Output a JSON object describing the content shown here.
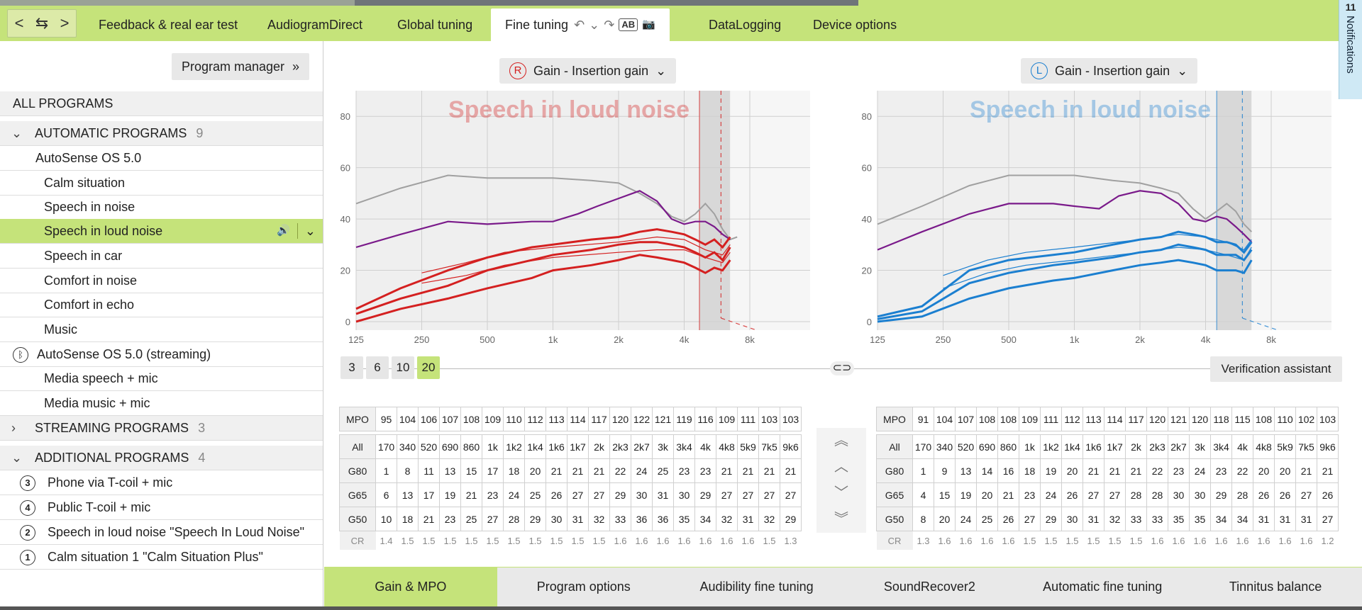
{
  "nav": {
    "back": "<",
    "swap": "⇆",
    "forward": ">"
  },
  "tabs": [
    "Feedback & real ear test",
    "AudiogramDirect",
    "Global tuning",
    "Fine tuning",
    "DataLogging",
    "Device options"
  ],
  "tab_icons": {
    "undo": "↶",
    "dropdown": "⌄",
    "redo": "↷",
    "ab": "AB",
    "camera": "📷"
  },
  "notifications": {
    "count": "11",
    "label": "Notifications"
  },
  "program_manager": "Program manager",
  "program_manager_icon": "»",
  "programs": {
    "all": "ALL PROGRAMS",
    "automatic": {
      "label": "AUTOMATIC PROGRAMS",
      "count": "9"
    },
    "autosense": "AutoSense OS 5.0",
    "auto_items": [
      "Calm situation",
      "Speech in noise",
      "Speech in loud noise",
      "Speech in car",
      "Comfort in noise",
      "Comfort in echo",
      "Music"
    ],
    "streaming_parent": "AutoSense OS 5.0 (streaming)",
    "streaming_items": [
      "Media speech + mic",
      "Media music + mic"
    ],
    "streaming": {
      "label": "STREAMING PROGRAMS",
      "count": "3"
    },
    "additional": {
      "label": "ADDITIONAL PROGRAMS",
      "count": "4"
    },
    "additional_items": [
      {
        "num": "3",
        "label": "Phone via T-coil + mic"
      },
      {
        "num": "4",
        "label": "Public T-coil + mic"
      },
      {
        "num": "2",
        "label": "Speech in loud noise \"Speech In Loud Noise\""
      },
      {
        "num": "1",
        "label": "Calm situation 1 \"Calm Situation Plus\""
      }
    ]
  },
  "gain_selector": {
    "right": "Gain - Insertion gain",
    "left": "Gain - Insertion gain",
    "r_mark": "R",
    "l_mark": "L"
  },
  "chart_title": "Speech in loud noise",
  "colors": {
    "accent": "#c5e37a",
    "right": "#d42020",
    "left": "#1b7fd0",
    "mpo": "#7a1a8a",
    "ref": "#a0a0a0"
  },
  "chart_data": [
    {
      "type": "line",
      "side": "right",
      "title": "Speech in loud noise",
      "x_ticks": [
        "125",
        "250",
        "500",
        "1k",
        "2k",
        "4k",
        "8k"
      ],
      "y_ticks": [
        "0",
        "20",
        "40",
        "60",
        "80"
      ],
      "ylim": [
        0,
        90
      ],
      "series": []
    },
    {
      "type": "line",
      "side": "left",
      "title": "Speech in loud noise",
      "x_ticks": [
        "125",
        "250",
        "500",
        "1k",
        "2k",
        "4k",
        "8k"
      ],
      "y_ticks": [
        "0",
        "20",
        "40",
        "60",
        "80"
      ],
      "ylim": [
        0,
        90
      ],
      "series": []
    }
  ],
  "curves": {
    "right": {
      "ref": [
        [
          125,
          46
        ],
        [
          200,
          52
        ],
        [
          330,
          57
        ],
        [
          500,
          56
        ],
        [
          800,
          56
        ],
        [
          1000,
          56
        ],
        [
          1500,
          55
        ],
        [
          2000,
          54
        ],
        [
          2500,
          50
        ],
        [
          3000,
          46
        ],
        [
          3500,
          41
        ],
        [
          4000,
          39
        ],
        [
          4500,
          42
        ],
        [
          5000,
          46
        ],
        [
          5500,
          42
        ],
        [
          6000,
          36
        ],
        [
          6500,
          32
        ],
        [
          7000,
          33
        ]
      ],
      "mpo": [
        [
          125,
          29
        ],
        [
          200,
          34
        ],
        [
          330,
          39
        ],
        [
          500,
          38
        ],
        [
          800,
          39
        ],
        [
          1000,
          39
        ],
        [
          1300,
          42
        ],
        [
          1600,
          45
        ],
        [
          2000,
          48
        ],
        [
          2500,
          51
        ],
        [
          3000,
          47
        ],
        [
          3500,
          40
        ],
        [
          4000,
          38
        ],
        [
          4500,
          39
        ],
        [
          5000,
          39
        ],
        [
          5500,
          37
        ],
        [
          6000,
          34
        ],
        [
          6500,
          32
        ]
      ],
      "g50": [
        [
          125,
          5
        ],
        [
          200,
          13
        ],
        [
          330,
          20
        ],
        [
          500,
          25
        ],
        [
          800,
          29
        ],
        [
          1000,
          30
        ],
        [
          1500,
          32
        ],
        [
          2000,
          33
        ],
        [
          2500,
          35
        ],
        [
          3000,
          36
        ],
        [
          3500,
          35
        ],
        [
          4000,
          34
        ],
        [
          4500,
          32
        ],
        [
          5000,
          30
        ],
        [
          5500,
          32
        ],
        [
          6000,
          29
        ],
        [
          6500,
          33
        ]
      ],
      "g65": [
        [
          125,
          3
        ],
        [
          200,
          9
        ],
        [
          330,
          14
        ],
        [
          500,
          20
        ],
        [
          800,
          24
        ],
        [
          1000,
          26
        ],
        [
          1500,
          28
        ],
        [
          2000,
          30
        ],
        [
          2500,
          31
        ],
        [
          3000,
          31
        ],
        [
          3500,
          30
        ],
        [
          4000,
          29
        ],
        [
          4500,
          27
        ],
        [
          5000,
          25
        ],
        [
          5500,
          27
        ],
        [
          6000,
          24
        ],
        [
          6500,
          29
        ]
      ],
      "g80": [
        [
          125,
          0
        ],
        [
          200,
          5
        ],
        [
          330,
          9
        ],
        [
          500,
          13
        ],
        [
          800,
          17
        ],
        [
          1000,
          20
        ],
        [
          1500,
          22
        ],
        [
          2000,
          24
        ],
        [
          2500,
          26
        ],
        [
          3000,
          25
        ],
        [
          3500,
          24
        ],
        [
          4000,
          23
        ],
        [
          4500,
          21
        ],
        [
          5000,
          19
        ],
        [
          5500,
          21
        ],
        [
          6000,
          20
        ],
        [
          6500,
          24
        ]
      ],
      "thin1": [
        [
          250,
          19
        ],
        [
          400,
          23
        ],
        [
          600,
          27
        ],
        [
          1000,
          29
        ],
        [
          2000,
          31
        ],
        [
          3000,
          33
        ],
        [
          4000,
          32
        ],
        [
          5000,
          28
        ],
        [
          6000,
          26
        ],
        [
          6500,
          30
        ]
      ],
      "thin2": [
        [
          250,
          15
        ],
        [
          400,
          18
        ],
        [
          600,
          22
        ],
        [
          1000,
          25
        ],
        [
          2000,
          27
        ],
        [
          3000,
          28
        ],
        [
          4000,
          28
        ],
        [
          5000,
          25
        ],
        [
          6000,
          23
        ],
        [
          6500,
          27
        ]
      ]
    },
    "left": {
      "ref": [
        [
          125,
          38
        ],
        [
          200,
          45
        ],
        [
          330,
          53
        ],
        [
          500,
          57
        ],
        [
          800,
          57
        ],
        [
          1000,
          57
        ],
        [
          1500,
          55
        ],
        [
          2000,
          54
        ],
        [
          2500,
          52
        ],
        [
          3000,
          50
        ],
        [
          3500,
          44
        ],
        [
          4000,
          40
        ],
        [
          4500,
          43
        ],
        [
          5000,
          46
        ],
        [
          5500,
          43
        ],
        [
          6000,
          38
        ],
        [
          6500,
          35
        ]
      ],
      "mpo": [
        [
          125,
          28
        ],
        [
          200,
          35
        ],
        [
          330,
          42
        ],
        [
          500,
          46
        ],
        [
          800,
          46
        ],
        [
          1000,
          45
        ],
        [
          1300,
          44
        ],
        [
          1600,
          49
        ],
        [
          2000,
          51
        ],
        [
          2500,
          50
        ],
        [
          3000,
          46
        ],
        [
          3500,
          40
        ],
        [
          4000,
          39
        ],
        [
          4500,
          41
        ],
        [
          5000,
          40
        ],
        [
          5500,
          37
        ],
        [
          6000,
          34
        ],
        [
          6500,
          31
        ]
      ],
      "g50": [
        [
          125,
          2
        ],
        [
          200,
          6
        ],
        [
          330,
          20
        ],
        [
          500,
          24
        ],
        [
          800,
          26
        ],
        [
          1000,
          27
        ],
        [
          1500,
          30
        ],
        [
          2000,
          32
        ],
        [
          2500,
          33
        ],
        [
          3000,
          35
        ],
        [
          3500,
          34
        ],
        [
          4000,
          33
        ],
        [
          4500,
          31
        ],
        [
          5000,
          31
        ],
        [
          5500,
          30
        ],
        [
          6000,
          27
        ],
        [
          6500,
          31
        ]
      ],
      "g65": [
        [
          125,
          1
        ],
        [
          200,
          4
        ],
        [
          330,
          15
        ],
        [
          500,
          19
        ],
        [
          800,
          22
        ],
        [
          1000,
          23
        ],
        [
          1500,
          25
        ],
        [
          2000,
          27
        ],
        [
          2500,
          28
        ],
        [
          3000,
          30
        ],
        [
          3500,
          29
        ],
        [
          4000,
          28
        ],
        [
          4500,
          26
        ],
        [
          5000,
          26
        ],
        [
          5500,
          26
        ],
        [
          6000,
          24
        ],
        [
          6500,
          28
        ]
      ],
      "g80": [
        [
          125,
          0
        ],
        [
          200,
          2
        ],
        [
          330,
          9
        ],
        [
          500,
          13
        ],
        [
          800,
          16
        ],
        [
          1000,
          17
        ],
        [
          1500,
          20
        ],
        [
          2000,
          22
        ],
        [
          2500,
          23
        ],
        [
          3000,
          24
        ],
        [
          3500,
          23
        ],
        [
          4000,
          22
        ],
        [
          4500,
          20
        ],
        [
          5000,
          20
        ],
        [
          5500,
          20
        ],
        [
          6000,
          19
        ],
        [
          6500,
          24
        ]
      ],
      "thin1": [
        [
          250,
          18
        ],
        [
          400,
          24
        ],
        [
          600,
          27
        ],
        [
          1000,
          29
        ],
        [
          2000,
          32
        ],
        [
          3000,
          34
        ],
        [
          4000,
          33
        ],
        [
          5000,
          31
        ],
        [
          6000,
          28
        ],
        [
          6500,
          32
        ]
      ],
      "thin2": [
        [
          250,
          13
        ],
        [
          400,
          19
        ],
        [
          600,
          22
        ],
        [
          1000,
          24
        ],
        [
          2000,
          27
        ],
        [
          3000,
          29
        ],
        [
          4000,
          28
        ],
        [
          5000,
          26
        ],
        [
          6000,
          24
        ],
        [
          6500,
          29
        ]
      ]
    }
  },
  "vlines": {
    "right": 4700,
    "left": 4500,
    "dashed": 5900
  },
  "resolution": [
    "3",
    "6",
    "10",
    "20"
  ],
  "resolution_selected": "20",
  "link_icon": "⊂⊃",
  "verification": "Verification assistant",
  "arrows": [
    "︽",
    "︿",
    "﹀",
    "︾"
  ],
  "table_right": {
    "mpo_label": "MPO",
    "mpo": [
      "95",
      "104",
      "106",
      "107",
      "108",
      "109",
      "110",
      "112",
      "113",
      "114",
      "117",
      "120",
      "122",
      "121",
      "119",
      "116",
      "109",
      "111",
      "103",
      "103"
    ],
    "freq_label": "All",
    "freqs": [
      "170",
      "340",
      "520",
      "690",
      "860",
      "1k",
      "1k2",
      "1k4",
      "1k6",
      "1k7",
      "2k",
      "2k3",
      "2k7",
      "3k",
      "3k4",
      "4k",
      "4k8",
      "5k9",
      "7k5",
      "9k6"
    ],
    "g80_label": "G80",
    "g80": [
      "1",
      "8",
      "11",
      "13",
      "15",
      "17",
      "18",
      "20",
      "21",
      "21",
      "21",
      "22",
      "24",
      "25",
      "23",
      "23",
      "21",
      "21",
      "21",
      "21"
    ],
    "g65_label": "G65",
    "g65": [
      "6",
      "13",
      "17",
      "19",
      "21",
      "23",
      "24",
      "25",
      "26",
      "27",
      "27",
      "29",
      "30",
      "31",
      "30",
      "29",
      "27",
      "27",
      "27",
      "27"
    ],
    "g50_label": "G50",
    "g50": [
      "10",
      "18",
      "21",
      "23",
      "25",
      "27",
      "28",
      "29",
      "30",
      "31",
      "32",
      "33",
      "36",
      "36",
      "35",
      "34",
      "32",
      "31",
      "32",
      "29"
    ],
    "cr_label": "CR",
    "cr": [
      "1.4",
      "1.5",
      "1.5",
      "1.5",
      "1.5",
      "1.5",
      "1.5",
      "1.5",
      "1.5",
      "1.5",
      "1.5",
      "1.6",
      "1.6",
      "1.6",
      "1.6",
      "1.6",
      "1.6",
      "1.6",
      "1.5",
      "1.3"
    ]
  },
  "table_left": {
    "mpo_label": "MPO",
    "mpo": [
      "91",
      "104",
      "107",
      "108",
      "108",
      "109",
      "111",
      "112",
      "113",
      "114",
      "117",
      "120",
      "121",
      "120",
      "118",
      "115",
      "108",
      "110",
      "102",
      "103"
    ],
    "freq_label": "All",
    "freqs": [
      "170",
      "340",
      "520",
      "690",
      "860",
      "1k",
      "1k2",
      "1k4",
      "1k6",
      "1k7",
      "2k",
      "2k3",
      "2k7",
      "3k",
      "3k4",
      "4k",
      "4k8",
      "5k9",
      "7k5",
      "9k6"
    ],
    "g80_label": "G80",
    "g80": [
      "1",
      "9",
      "13",
      "14",
      "16",
      "18",
      "19",
      "20",
      "21",
      "21",
      "21",
      "22",
      "23",
      "24",
      "23",
      "22",
      "20",
      "20",
      "21",
      "21"
    ],
    "g65_label": "G65",
    "g65": [
      "4",
      "15",
      "19",
      "20",
      "21",
      "23",
      "24",
      "26",
      "27",
      "27",
      "28",
      "28",
      "30",
      "30",
      "29",
      "28",
      "26",
      "26",
      "27",
      "26"
    ],
    "g50_label": "G50",
    "g50": [
      "8",
      "20",
      "24",
      "25",
      "26",
      "27",
      "29",
      "30",
      "31",
      "32",
      "33",
      "33",
      "35",
      "35",
      "34",
      "34",
      "31",
      "31",
      "31",
      "27"
    ],
    "cr_label": "CR",
    "cr": [
      "1.3",
      "1.6",
      "1.6",
      "1.6",
      "1.6",
      "1.5",
      "1.5",
      "1.5",
      "1.5",
      "1.5",
      "1.5",
      "1.6",
      "1.6",
      "1.6",
      "1.6",
      "1.6",
      "1.6",
      "1.6",
      "1.6",
      "1.2"
    ]
  },
  "bottom_tabs": [
    "Gain & MPO",
    "Program options",
    "Audibility fine tuning",
    "SoundRecover2",
    "Automatic fine tuning",
    "Tinnitus balance"
  ],
  "selected_program_icons": {
    "speaker": "🔊",
    "chevron": "⌄"
  }
}
